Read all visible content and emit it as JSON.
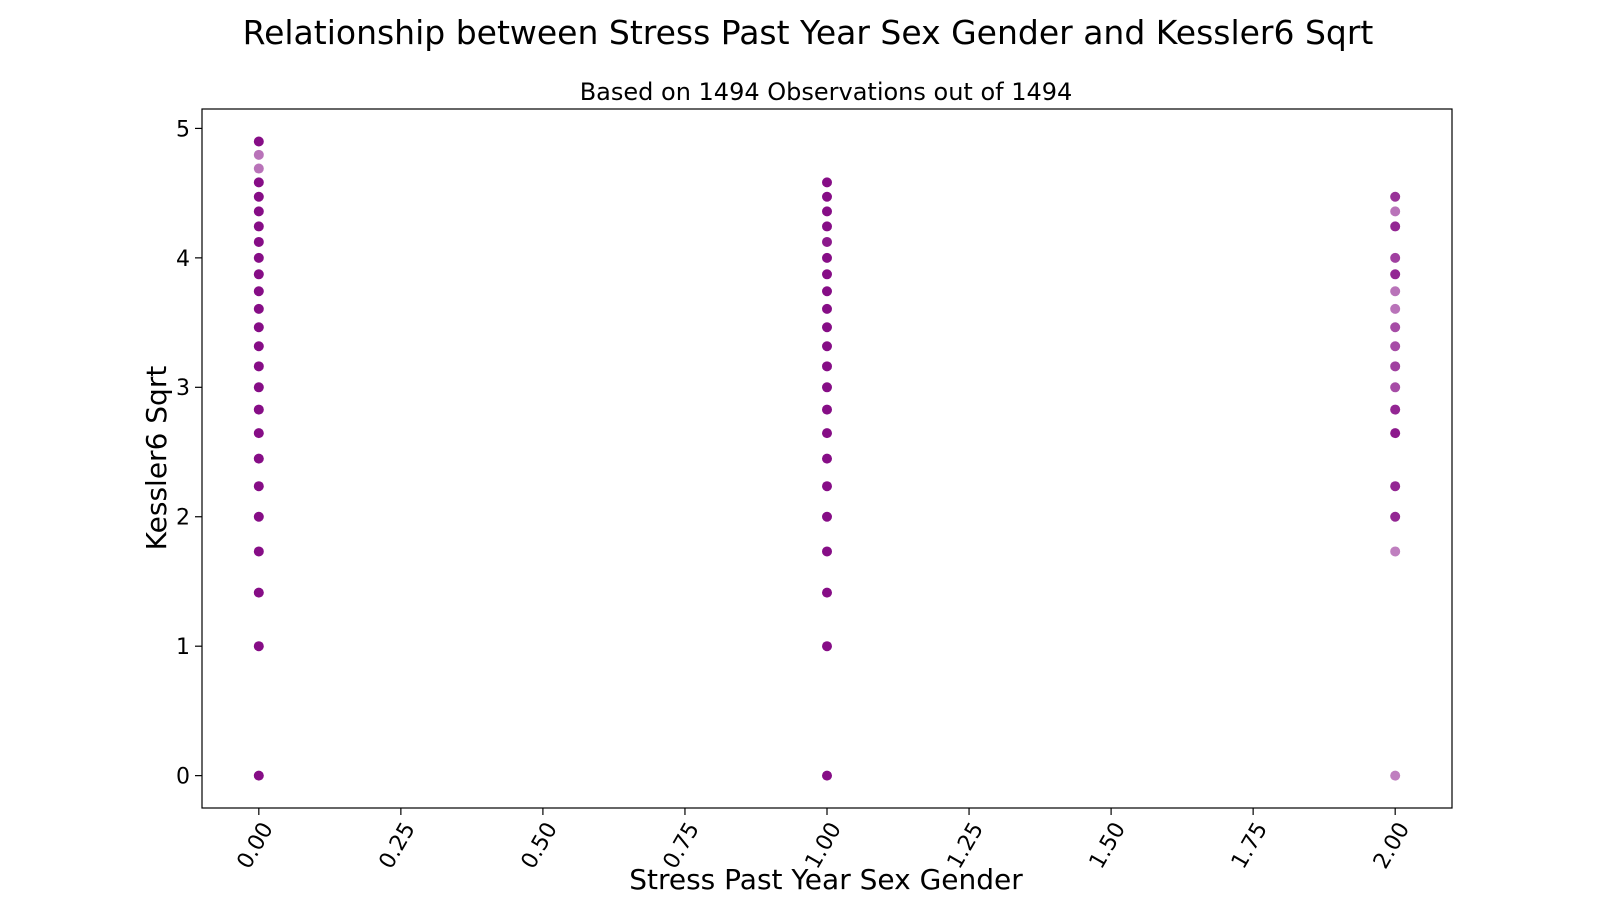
{
  "chart_data": {
    "type": "scatter",
    "title": "Relationship between Stress Past Year Sex Gender and Kessler6 Sqrt",
    "subtitle": "Based on 1494 Observations out of 1494",
    "xlabel": "Stress Past Year Sex Gender",
    "ylabel": "Kessler6 Sqrt",
    "xlim": [
      -0.1,
      2.1
    ],
    "ylim": [
      -0.25,
      5.15
    ],
    "xticks": [
      0.0,
      0.25,
      0.5,
      0.75,
      1.0,
      1.25,
      1.5,
      1.75,
      2.0
    ],
    "xtick_labels": [
      "0.00",
      "0.25",
      "0.50",
      "0.75",
      "1.00",
      "1.25",
      "1.50",
      "1.75",
      "2.00"
    ],
    "yticks": [
      0,
      1,
      2,
      3,
      4,
      5
    ],
    "ytick_labels": [
      "0",
      "1",
      "2",
      "3",
      "4",
      "5"
    ],
    "grid": false,
    "marker_color": "#800080",
    "series": [
      {
        "x": 0,
        "y": [
          0,
          1,
          1.414,
          1.732,
          2,
          2.236,
          2.449,
          2.646,
          2.828,
          3,
          3.162,
          3.317,
          3.464,
          3.606,
          3.742,
          3.873,
          4,
          4.123,
          4.243,
          4.359,
          4.472,
          4.583,
          4.69,
          4.796,
          4.899
        ],
        "opacity": [
          0.95,
          0.95,
          0.95,
          0.95,
          0.95,
          0.95,
          0.95,
          0.95,
          0.95,
          0.95,
          0.95,
          0.95,
          0.95,
          0.95,
          0.95,
          0.95,
          0.95,
          0.95,
          0.95,
          0.95,
          0.95,
          0.95,
          0.55,
          0.55,
          0.95
        ]
      },
      {
        "x": 1,
        "y": [
          0,
          1,
          1.414,
          1.732,
          2,
          2.236,
          2.449,
          2.646,
          2.828,
          3,
          3.162,
          3.317,
          3.464,
          3.606,
          3.742,
          3.873,
          4,
          4.123,
          4.243,
          4.359,
          4.472,
          4.583
        ],
        "opacity": [
          0.95,
          0.95,
          0.95,
          0.95,
          0.95,
          0.95,
          0.95,
          0.95,
          0.95,
          0.95,
          0.95,
          0.95,
          0.95,
          0.95,
          0.95,
          0.95,
          0.95,
          0.9,
          0.95,
          0.95,
          0.95,
          0.95
        ]
      },
      {
        "x": 2,
        "y": [
          0,
          1.732,
          2,
          2.236,
          2.646,
          2.828,
          3,
          3.162,
          3.317,
          3.464,
          3.606,
          3.742,
          3.873,
          4,
          4.243,
          4.359,
          4.472
        ],
        "opacity": [
          0.5,
          0.5,
          0.85,
          0.85,
          0.9,
          0.85,
          0.7,
          0.75,
          0.7,
          0.7,
          0.55,
          0.55,
          0.85,
          0.75,
          0.85,
          0.55,
          0.8
        ]
      }
    ]
  }
}
